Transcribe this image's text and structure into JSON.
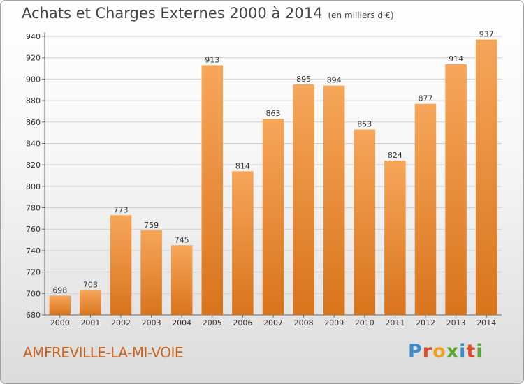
{
  "header": {
    "title": "Achats et Charges Externes 2000 à 2014",
    "subtitle": "(en milliers d'€)"
  },
  "footer": {
    "city": "AMFREVILLE-LA-MI-VOIE",
    "logo": "Proxiti"
  },
  "colors": {
    "bar_light": "#f6a65a",
    "bar_dark": "#d9741c",
    "city": "#c8621c",
    "logo": [
      "#3b8ad0",
      "#e04a2a",
      "#f0a020",
      "#5aa832",
      "#3b8ad0",
      "#e04a2a",
      "#5aa832"
    ]
  },
  "chart_data": {
    "type": "bar",
    "title": "Achats et Charges Externes 2000 à 2014",
    "subtitle": "(en milliers d'€)",
    "categories": [
      "2000",
      "2001",
      "2002",
      "2003",
      "2004",
      "2005",
      "2006",
      "2007",
      "2008",
      "2009",
      "2010",
      "2011",
      "2012",
      "2013",
      "2014"
    ],
    "values": [
      698,
      703,
      773,
      759,
      745,
      913,
      814,
      863,
      895,
      894,
      853,
      824,
      877,
      914,
      937
    ],
    "ylim": [
      680,
      940
    ],
    "yticks": [
      680,
      700,
      720,
      740,
      760,
      780,
      800,
      820,
      840,
      860,
      880,
      900,
      920,
      940
    ],
    "grid": true,
    "legend": "none"
  }
}
